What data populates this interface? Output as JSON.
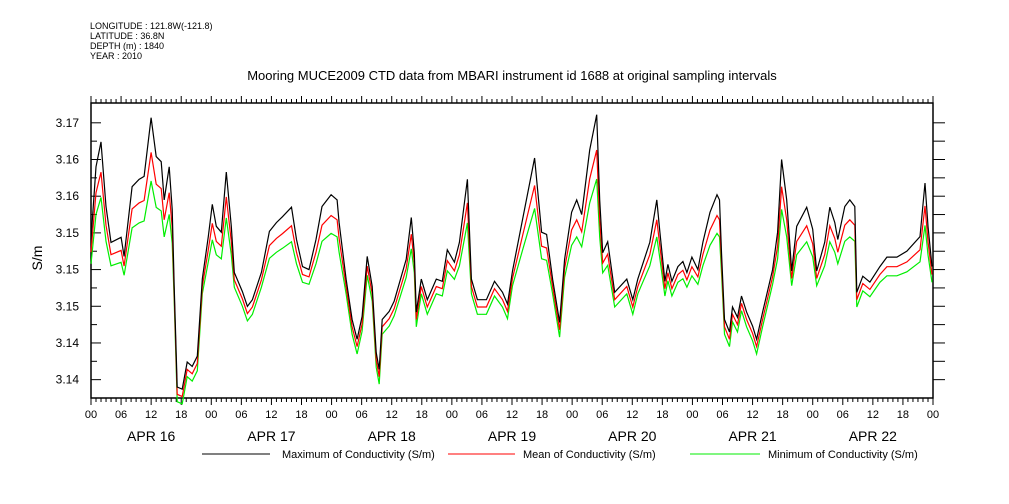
{
  "header": {
    "longitude": "LONGITUDE : 121.8W(-121.8)",
    "latitude": "LATITUDE : 36.8N",
    "depth": "DEPTH (m) : 1840",
    "year": "YEAR : 2010"
  },
  "chart_data": {
    "type": "line",
    "title": "Mooring MUCE2009 CTD data from MBARI instrument id 1688 at original sampling intervals",
    "xlabel": "",
    "ylabel": "S/m",
    "x_unit": "hours since APR 16 00:00",
    "xlim": [
      0,
      168
    ],
    "ylim": [
      3.1325,
      3.1727
    ],
    "ytick_values": [
      3.17,
      3.165,
      3.16,
      3.155,
      3.15,
      3.145,
      3.14,
      3.135
    ],
    "ytick_labels": [
      "3.17",
      "3.16",
      "3.16",
      "3.15",
      "3.15",
      "3.15",
      "3.14",
      "3.14"
    ],
    "xtick_hour_labels": [
      "00",
      "06",
      "12",
      "18"
    ],
    "day_labels": [
      "APR 16",
      "APR 17",
      "APR 18",
      "APR 19",
      "APR 20",
      "APR 21",
      "APR 22"
    ],
    "grid": false,
    "legend_placement": "bottom",
    "colors": {
      "max": "#000000",
      "mean": "#ff0000",
      "min": "#00ee00"
    },
    "x": [
      0,
      1.0,
      2.0,
      3.0,
      4.0,
      6.0,
      6.6,
      8.2,
      9.6,
      10.6,
      12.0,
      13.0,
      14.0,
      14.6,
      15.6,
      16.2,
      16.6,
      17.2,
      18.2,
      19.2,
      20.2,
      21.2,
      22.2,
      23.4,
      24.2,
      25.0,
      26.0,
      27.0,
      28.0,
      28.6,
      30.2,
      31.2,
      32.2,
      34.0,
      35.6,
      37.0,
      38.2,
      40.0,
      41.0,
      42.2,
      43.5,
      44.9,
      46.1,
      47.9,
      49.1,
      49.5,
      50.9,
      52.1,
      53.1,
      54.1,
      55.1,
      56.1,
      56.9,
      57.5,
      58.1,
      59.5,
      60.5,
      62.9,
      63.9,
      64.5,
      64.9,
      65.9,
      67.1,
      68.9,
      70.1,
      71.1,
      72.5,
      73.5,
      75.1,
      75.9,
      77.1,
      78.9,
      80.5,
      82.1,
      83.1,
      84.1,
      86.1,
      88.5,
      89.9,
      90.9,
      92.1,
      93.5,
      94.5,
      95.9,
      96.9,
      97.9,
      99.5,
      100.9,
      101.5,
      102.1,
      103.1,
      104.5,
      106.9,
      108.1,
      109.1,
      111.5,
      112.9,
      113.5,
      114.5,
      115.1,
      115.9,
      117.1,
      118.1,
      118.9,
      119.9,
      121.1,
      122.1,
      123.5,
      124.9,
      125.4,
      125.8,
      126.4,
      127.4,
      128.0,
      129.0,
      129.8,
      130.8,
      132.0,
      132.8,
      134.0,
      136.0,
      137.0,
      137.8,
      138.8,
      139.8,
      140.8,
      142.8,
      144.0,
      144.8,
      146.4,
      147.4,
      148.4,
      149.0,
      150.4,
      151.4,
      152.4,
      152.8,
      154.0,
      155.4,
      157.4,
      158.8,
      160.8,
      162.8,
      165.4,
      166.4,
      167.0,
      167.8
    ],
    "series": [
      {
        "name": "Maximum of Conductivity (S/m)",
        "key": "max",
        "values": [
          3.1541,
          3.164,
          3.1674,
          3.1586,
          3.1537,
          3.1544,
          3.1518,
          3.1613,
          3.1623,
          3.1627,
          3.1707,
          3.1654,
          3.1647,
          3.1595,
          3.164,
          3.1582,
          3.1477,
          3.134,
          3.1337,
          3.1374,
          3.1368,
          3.1382,
          3.1487,
          3.1545,
          3.1589,
          3.1559,
          3.1551,
          3.1633,
          3.1559,
          3.1496,
          3.147,
          3.145,
          3.1459,
          3.1496,
          3.1552,
          3.1564,
          3.1572,
          3.1585,
          3.1541,
          3.1504,
          3.15,
          3.1541,
          3.1586,
          3.1602,
          3.1595,
          3.1564,
          3.1487,
          3.1432,
          3.1405,
          3.1436,
          3.1518,
          3.1477,
          3.1387,
          3.1364,
          3.1432,
          3.1443,
          3.1457,
          3.1514,
          3.1571,
          3.1523,
          3.1442,
          3.1487,
          3.1459,
          3.1487,
          3.1484,
          3.1527,
          3.151,
          3.1537,
          3.1623,
          3.1487,
          3.1459,
          3.1459,
          3.1484,
          3.1469,
          3.1453,
          3.1498,
          3.1568,
          3.1652,
          3.1551,
          3.1548,
          3.1487,
          3.1428,
          3.1514,
          3.1578,
          3.1595,
          3.1575,
          3.1663,
          3.1711,
          3.1595,
          3.1523,
          3.1538,
          3.1469,
          3.1487,
          3.1459,
          3.1487,
          3.1537,
          3.1595,
          3.1551,
          3.1484,
          3.1507,
          3.1484,
          3.1504,
          3.1511,
          3.1496,
          3.1517,
          3.15,
          3.1538,
          3.1578,
          3.1602,
          3.1595,
          3.1523,
          3.1432,
          3.1415,
          3.1449,
          3.1435,
          3.1464,
          3.1442,
          3.1423,
          3.1405,
          3.1442,
          3.15,
          3.1551,
          3.165,
          3.1595,
          3.1498,
          3.1559,
          3.1585,
          3.1555,
          3.1498,
          3.1537,
          3.1585,
          3.1564,
          3.1541,
          3.1586,
          3.1595,
          3.1586,
          3.1469,
          3.1491,
          3.1483,
          3.1504,
          3.1517,
          3.1517,
          3.1525,
          3.1545,
          3.1618,
          3.1559,
          3.1504
        ]
      },
      {
        "name": "Mean of Conductivity (S/m)",
        "key": "mean",
        "offset_from_max": 0.001,
        "peak_factor": 0.18
      },
      {
        "name": "Minimum of Conductivity (S/m)",
        "key": "min",
        "offset_from_max": 0.002,
        "peak_factor": 0.32
      }
    ]
  }
}
